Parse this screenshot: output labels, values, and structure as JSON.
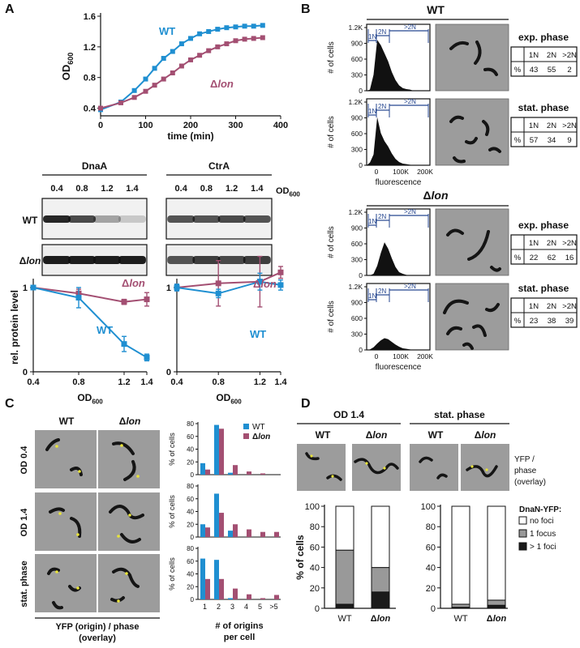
{
  "panels": [
    "A",
    "B",
    "C",
    "D"
  ],
  "colors": {
    "wt": "#1f8fd1",
    "lon": "#a34f72",
    "facs_gate": "#25468f",
    "micrograph_bg": "#9c9c9c",
    "cell": "#151515",
    "yfp_focus": "#e8e33a",
    "bar_none": "#ffffff",
    "bar_one": "#999999",
    "bar_multi": "#1a1a1a"
  },
  "text": {
    "wt": "WT",
    "lon": "Δlon",
    "delta": "Δ",
    "lon_italic": "lon",
    "od": "OD",
    "od_sub": "600",
    "time_label": "time (min)",
    "dnaa": "DnaA",
    "ctra": "CtrA",
    "rel_level": "rel. protein level",
    "num_cells": "# of cells",
    "fluorescence": "fluorescence",
    "exp_phase": "exp. phase",
    "stat_phase": "stat. phase",
    "gate_1n": "1N",
    "gate_2n": "2N",
    "gate_gt2n": ">2N",
    "pct": "%",
    "od04": "OD 0.4",
    "od14": "OD 1.4",
    "yfp_origin_1": "YFP (origin) / phase",
    "yfp_origin_2": "(overlay)",
    "pct_cells": "% of cells",
    "origins_1": "# of origins",
    "origins_2": "per cell",
    "yfp_overlay_1": "YFP /",
    "yfp_overlay_2": "phase",
    "yfp_overlay_3": "(overlay)",
    "dnan_legend": "DnaN-YFP:",
    "no_foci": "no foci",
    "one_focus": "1 focus",
    "multi_foci": "> 1 foci"
  },
  "blot_od_labels": [
    "0.4",
    "0.8",
    "1.2",
    "1.4"
  ],
  "facs_tables": [
    {
      "values": [
        43,
        55,
        2
      ]
    },
    {
      "values": [
        57,
        34,
        9
      ]
    },
    {
      "values": [
        22,
        62,
        16
      ]
    },
    {
      "values": [
        23,
        38,
        39
      ]
    }
  ],
  "chart_data": [
    {
      "type": "line",
      "panel": "A",
      "xlabel": "time (min)",
      "ylabel": "OD600",
      "xlim": [
        0,
        400
      ],
      "ylim": [
        0.3,
        1.6
      ],
      "xticks": [
        0,
        100,
        200,
        300,
        400
      ],
      "yticks": [
        0.4,
        0.8,
        1.2,
        1.6
      ],
      "series": [
        {
          "name": "WT",
          "x": [
            0,
            45,
            75,
            100,
            120,
            140,
            160,
            180,
            200,
            220,
            240,
            260,
            280,
            300,
            320,
            340,
            360
          ],
          "y": [
            0.38,
            0.48,
            0.63,
            0.78,
            0.92,
            1.05,
            1.14,
            1.24,
            1.31,
            1.37,
            1.4,
            1.43,
            1.45,
            1.46,
            1.47,
            1.47,
            1.48
          ]
        },
        {
          "name": "Δlon",
          "x": [
            0,
            45,
            75,
            100,
            120,
            140,
            160,
            180,
            200,
            220,
            240,
            260,
            280,
            300,
            320,
            340,
            360
          ],
          "y": [
            0.4,
            0.47,
            0.54,
            0.62,
            0.7,
            0.78,
            0.86,
            0.95,
            1.03,
            1.09,
            1.15,
            1.2,
            1.24,
            1.28,
            1.3,
            1.31,
            1.32
          ]
        }
      ]
    },
    {
      "type": "line",
      "panel": "A-DnaA",
      "xlabel": "OD600",
      "ylabel": "rel. protein level",
      "xlim": [
        0.4,
        1.4
      ],
      "ylim": [
        0,
        1.1
      ],
      "xticks": [
        0.4,
        0.8,
        1.2,
        1.4
      ],
      "yticks": [
        0,
        1
      ],
      "series": [
        {
          "name": "Δlon",
          "x": [
            0.4,
            0.8,
            1.2,
            1.4
          ],
          "y": [
            1.0,
            0.93,
            0.83,
            0.86
          ],
          "err": [
            0.02,
            0.05,
            0.03,
            0.08
          ]
        },
        {
          "name": "WT",
          "x": [
            0.4,
            0.8,
            1.2,
            1.4
          ],
          "y": [
            1.0,
            0.88,
            0.33,
            0.17
          ],
          "err": [
            0.02,
            0.12,
            0.09,
            0.04
          ]
        }
      ]
    },
    {
      "type": "line",
      "panel": "A-CtrA",
      "xlabel": "OD600",
      "xlim": [
        0.4,
        1.4
      ],
      "ylim": [
        0,
        1.1
      ],
      "xticks": [
        0.4,
        0.8,
        1.2,
        1.4
      ],
      "yticks": [
        0,
        1
      ],
      "series": [
        {
          "name": "Δlon",
          "x": [
            0.4,
            0.8,
            1.2,
            1.4
          ],
          "y": [
            1.0,
            1.05,
            1.07,
            1.18
          ],
          "err": [
            0.04,
            0.27,
            0.3,
            0.07
          ]
        },
        {
          "name": "WT",
          "x": [
            0.4,
            0.8,
            1.2,
            1.4
          ],
          "y": [
            1.0,
            0.93,
            1.07,
            1.03
          ],
          "err": [
            0.04,
            0.05,
            0.1,
            0.06
          ]
        }
      ]
    },
    {
      "type": "bar",
      "panel": "C-OD0.4",
      "categories": [
        "1",
        "2",
        "3",
        "4",
        "5",
        ">5"
      ],
      "ylabel": "% of cells",
      "ylim": [
        0,
        80
      ],
      "yticks": [
        0,
        20,
        40,
        60,
        80
      ],
      "series": [
        {
          "name": "WT",
          "values": [
            18,
            78,
            3,
            0,
            0,
            0
          ]
        },
        {
          "name": "Δlon",
          "values": [
            8,
            72,
            15,
            5,
            2,
            0
          ]
        }
      ]
    },
    {
      "type": "bar",
      "panel": "C-OD1.4",
      "categories": [
        "1",
        "2",
        "3",
        "4",
        "5",
        ">5"
      ],
      "ylabel": "% of cells",
      "ylim": [
        0,
        80
      ],
      "yticks": [
        0,
        20,
        40,
        60,
        80
      ],
      "series": [
        {
          "name": "WT",
          "values": [
            20,
            68,
            10,
            0,
            0,
            0
          ]
        },
        {
          "name": "Δlon",
          "values": [
            15,
            38,
            20,
            12,
            8,
            8
          ]
        }
      ]
    },
    {
      "type": "bar",
      "panel": "C-stat",
      "categories": [
        "1",
        "2",
        "3",
        "4",
        "5",
        ">5"
      ],
      "ylabel": "% of cells",
      "ylim": [
        0,
        80
      ],
      "yticks": [
        0,
        20,
        40,
        60,
        80
      ],
      "series": [
        {
          "name": "WT",
          "values": [
            64,
            62,
            2,
            0,
            0,
            0
          ]
        },
        {
          "name": "Δlon",
          "values": [
            32,
            32,
            17,
            8,
            2,
            7
          ]
        }
      ]
    },
    {
      "type": "bar",
      "panel": "D",
      "stacked": true,
      "ylabel": "% of cells",
      "ylim": [
        0,
        100
      ],
      "yticks": [
        0,
        20,
        40,
        60,
        80,
        100
      ],
      "groups": [
        {
          "title": "OD 1.4",
          "categories": [
            "WT",
            "Δlon"
          ],
          "series": [
            {
              "name": "> 1 foci",
              "values": [
                4,
                16
              ]
            },
            {
              "name": "1 focus",
              "values": [
                53,
                24
              ]
            },
            {
              "name": "no foci",
              "values": [
                43,
                60
              ]
            }
          ]
        },
        {
          "title": "stat. phase",
          "categories": [
            "WT",
            "Δlon"
          ],
          "series": [
            {
              "name": "> 1 foci",
              "values": [
                1,
                3
              ]
            },
            {
              "name": "1 focus",
              "values": [
                3,
                5
              ]
            },
            {
              "name": "no foci",
              "values": [
                96,
                92
              ]
            }
          ]
        }
      ]
    }
  ]
}
